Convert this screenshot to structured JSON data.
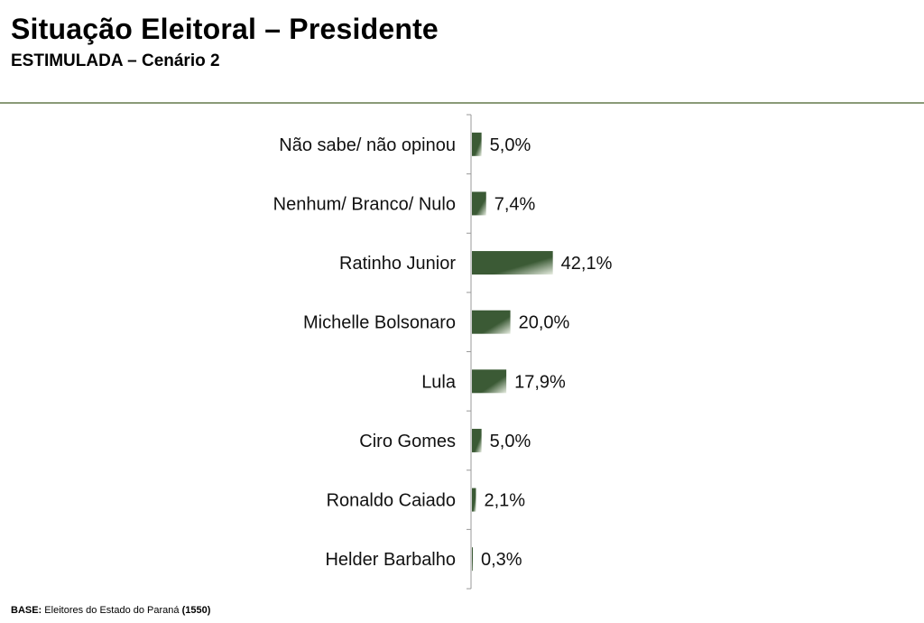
{
  "header": {
    "title": "Situação Eleitoral – Presidente",
    "subtitle": "ESTIMULADA – Cenário 2"
  },
  "footer": {
    "base_label": "BASE:",
    "base_text": "Eleitores do Estado do Paraná",
    "base_count": "(1550)"
  },
  "colors": {
    "bar_dark": "#3b5a35",
    "bar_light": "#e8eee2",
    "rule": "#8a9a78",
    "axis": "#999999"
  },
  "chart_data": {
    "type": "bar",
    "orientation": "horizontal",
    "categories": [
      "Não sabe/ não opinou",
      "Nenhum/ Branco/ Nulo",
      "Ratinho Junior",
      "Michelle Bolsonaro",
      "Lula",
      "Ciro Gomes",
      "Ronaldo Caiado",
      "Helder Barbalho"
    ],
    "values": [
      5.0,
      7.4,
      42.1,
      20.0,
      17.9,
      5.0,
      2.1,
      0.3
    ],
    "value_labels": [
      "5,0%",
      "7,4%",
      "42,1%",
      "20,0%",
      "17,9%",
      "5,0%",
      "2,1%",
      "0,3%"
    ],
    "unit": "%",
    "grid": false,
    "legend": "none"
  }
}
